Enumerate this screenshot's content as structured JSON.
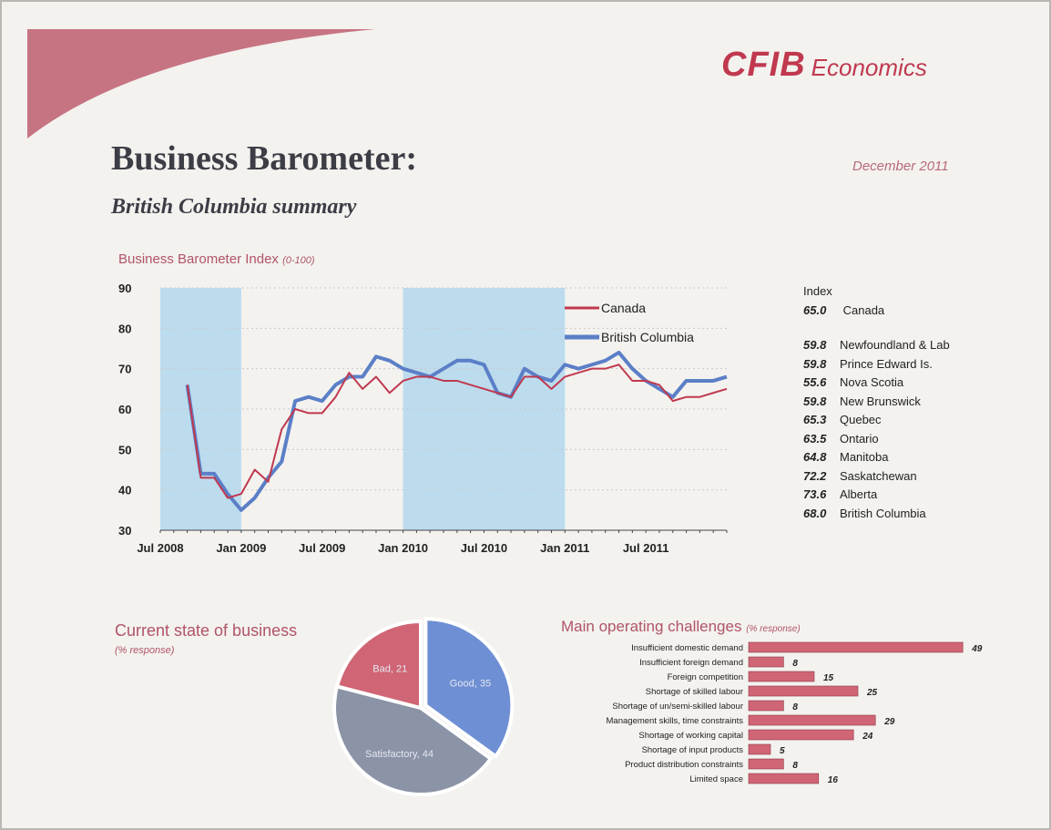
{
  "header": {
    "logo": "CFIB",
    "logo_suffix": "Economics",
    "title": "Business Barometer:",
    "subtitle": "British Columbia summary",
    "date": "December 2011"
  },
  "index_panel": {
    "heading": "Index",
    "canada": {
      "value": "65.0",
      "name": "Canada"
    },
    "provinces": [
      {
        "value": "59.8",
        "name": "Newfoundland & Lab"
      },
      {
        "value": "59.8",
        "name": "Prince Edward Is."
      },
      {
        "value": "55.6",
        "name": "Nova Scotia"
      },
      {
        "value": "59.8",
        "name": "New Brunswick"
      },
      {
        "value": "65.3",
        "name": "Quebec"
      },
      {
        "value": "63.5",
        "name": "Ontario"
      },
      {
        "value": "64.8",
        "name": "Manitoba"
      },
      {
        "value": "72.2",
        "name": "Saskatchewan"
      },
      {
        "value": "73.6",
        "name": "Alberta"
      },
      {
        "value": "68.0",
        "name": "British Columbia"
      }
    ]
  },
  "colors": {
    "accent": "#b15467",
    "canada": "#c0394f",
    "bc": "#5b7fc7",
    "recession_band": "#bcdcee",
    "pie_good": "#6f8fd4",
    "pie_satisfactory": "#8b93a6",
    "pie_bad": "#d06575",
    "bar": "#d06575"
  },
  "chart_data": [
    {
      "type": "line",
      "title": "Business Barometer Index",
      "title_unit": "(0-100)",
      "ylim": [
        30,
        90
      ],
      "yticks": [
        "30",
        "40",
        "50",
        "60",
        "70",
        "80",
        "90"
      ],
      "xlim": [
        0,
        42
      ],
      "xtick_labels": [
        "Jul 2008",
        "Jan 2009",
        "Jul 2009",
        "Jan 2010",
        "Jul 2010",
        "Jan 2011",
        "Jul 2011"
      ],
      "xtick_positions": [
        0,
        6,
        12,
        18,
        24,
        30,
        36
      ],
      "shaded_bands": [
        [
          0,
          6
        ],
        [
          18,
          30
        ]
      ],
      "grid": true,
      "legend_position": "top-right",
      "x": [
        2,
        3,
        4,
        5,
        6,
        7,
        8,
        9,
        10,
        11,
        12,
        13,
        14,
        15,
        16,
        17,
        18,
        19,
        20,
        21,
        22,
        23,
        24,
        25,
        26,
        27,
        28,
        29,
        30,
        31,
        32,
        33,
        34,
        35,
        36,
        37,
        38,
        39,
        40,
        41,
        42
      ],
      "series": [
        {
          "name": "Canada",
          "values": [
            66,
            43,
            43,
            38,
            39,
            45,
            42,
            55,
            60,
            59,
            59,
            63,
            69,
            65,
            68,
            64,
            67,
            68,
            68,
            67,
            67,
            66,
            65,
            64,
            63,
            68,
            68,
            65,
            68,
            69,
            70,
            70,
            71,
            67,
            67,
            66,
            62,
            63,
            63,
            64,
            65
          ]
        },
        {
          "name": "British Columbia",
          "values": [
            66,
            44,
            44,
            39,
            35,
            38,
            43,
            47,
            62,
            63,
            62,
            66,
            68,
            68,
            73,
            72,
            70,
            69,
            68,
            70,
            72,
            72,
            71,
            64,
            63,
            70,
            68,
            67,
            71,
            70,
            71,
            72,
            74,
            70,
            67,
            65,
            63,
            67,
            67,
            67,
            68
          ]
        }
      ]
    },
    {
      "type": "pie",
      "title": "Current state of business",
      "subtitle": "(% response)",
      "slices": [
        {
          "label": "Good, 35",
          "value": 35
        },
        {
          "label": "Satisfactory, 44",
          "value": 44
        },
        {
          "label": "Bad, 21",
          "value": 21
        }
      ]
    },
    {
      "type": "bar",
      "orientation": "horizontal",
      "title": "Main operating challenges",
      "title_unit": "(% response)",
      "xlim": [
        0,
        50
      ],
      "categories": [
        "Insufficient domestic demand",
        "Insufficient foreign demand",
        "Foreign competition",
        "Shortage of skilled labour",
        "Shortage of un/semi-skilled labour",
        "Management skills, time constraints",
        "Shortage of working capital",
        "Shortage of input products",
        "Product distribution constraints",
        "Limited space"
      ],
      "values": [
        49,
        8,
        15,
        25,
        8,
        29,
        24,
        5,
        8,
        16
      ]
    }
  ]
}
